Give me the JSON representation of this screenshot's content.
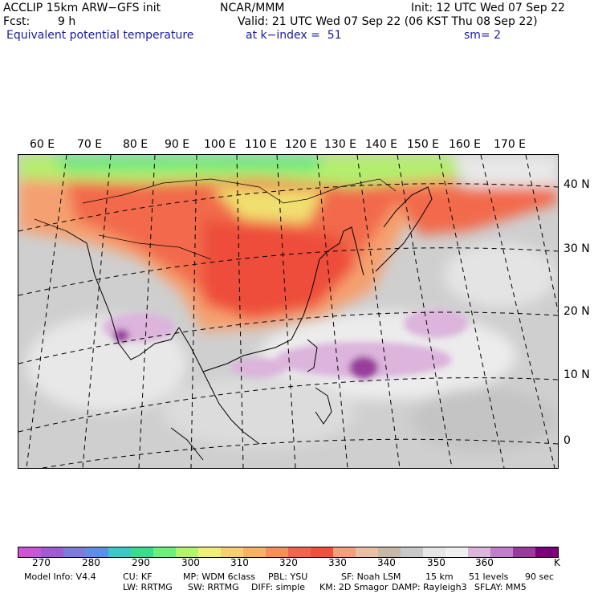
{
  "header": {
    "model": "ACCLIP 15km ARW−GFS init",
    "org": "NCAR/MMM",
    "init": "Init: 12 UTC Wed 07 Sep 22",
    "fcst_label": "Fcst:",
    "fcst_value": "9 h",
    "valid": "Valid: 21 UTC Wed 07 Sep 22 (06 KST Thu 08 Sep 22)",
    "field": "Equivalent potential temperature",
    "level": "at k−index =  51",
    "smooth": "sm= 2"
  },
  "map": {
    "lon_labels": [
      "60 E",
      "70 E",
      "80 E",
      "90 E",
      "100 E",
      "110 E",
      "120 E",
      "130 E",
      "140 E",
      "150 E",
      "160 E",
      "170 E"
    ],
    "lat_labels": [
      "40 N",
      "30 N",
      "20 N",
      "10 N",
      "0"
    ]
  },
  "colorbar": {
    "colors": [
      "#c757d4",
      "#a05ad4",
      "#7c7cdb",
      "#5e8ee6",
      "#3cc8c8",
      "#37dc8c",
      "#6cf07c",
      "#b4f46c",
      "#f0f078",
      "#f5d070",
      "#f5b464",
      "#f5905c",
      "#f06450",
      "#f0503c",
      "#f0a07c",
      "#e8c0a4",
      "#c8b8a8",
      "#c8c8c8",
      "#e6e6e6",
      "#f0f0f0",
      "#dcb4dc",
      "#c080c8",
      "#983c9c",
      "#780078"
    ],
    "labels": [
      "270",
      "280",
      "290",
      "300",
      "310",
      "320",
      "330",
      "340",
      "350",
      "360"
    ],
    "unit": "K"
  },
  "footer": {
    "line1": [
      "Model Info: V4.4",
      "CU: KF",
      "MP: WDM 6class",
      "PBL: YSU",
      "SF: Noah LSM",
      "15 km",
      "51 levels",
      "90 sec"
    ],
    "line2": [
      "LW: RRTMG",
      "SW: RRTMG",
      "DIFF: simple",
      "KM: 2D Smagor",
      "DAMP: Rayleigh3",
      "SFLAY: MM5"
    ]
  }
}
